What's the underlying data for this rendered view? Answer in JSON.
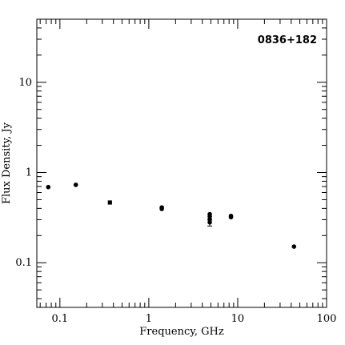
{
  "chart_data": {
    "type": "scatter",
    "title": "",
    "annotation": "0836+182",
    "xlabel": "Frequency, GHz",
    "ylabel": "Flux Density, Jy",
    "x_scale": "log",
    "y_scale": "log",
    "xlim": [
      0.055,
      100
    ],
    "ylim": [
      0.032,
      50
    ],
    "grid": false,
    "legend": "none",
    "x_ticks": [
      {
        "value": 0.1,
        "label": "0.1"
      },
      {
        "value": 1,
        "label": "1"
      },
      {
        "value": 10,
        "label": "10"
      },
      {
        "value": 100,
        "label": "100"
      }
    ],
    "y_ticks": [
      {
        "value": 0.1,
        "label": "0.1"
      },
      {
        "value": 1,
        "label": "1"
      },
      {
        "value": 10,
        "label": "10"
      }
    ],
    "points": [
      {
        "x": 0.074,
        "y": 0.69,
        "marker": "circle"
      },
      {
        "x": 0.151,
        "y": 0.73,
        "marker": "circle"
      },
      {
        "x": 0.365,
        "y": 0.465,
        "marker": "square"
      },
      {
        "x": 1.4,
        "y": 0.41,
        "marker": "circle"
      },
      {
        "x": 1.4,
        "y": 0.395,
        "marker": "circle"
      },
      {
        "x": 4.85,
        "y": 0.345,
        "marker": "circle"
      },
      {
        "x": 4.85,
        "y": 0.325,
        "marker": "circle"
      },
      {
        "x": 4.85,
        "y": 0.3,
        "marker": "circle"
      },
      {
        "x": 4.85,
        "y": 0.28,
        "marker": "circle",
        "error": [
          0.255,
          0.305
        ]
      },
      {
        "x": 8.4,
        "y": 0.33,
        "marker": "circle"
      },
      {
        "x": 8.4,
        "y": 0.32,
        "marker": "circle"
      },
      {
        "x": 43,
        "y": 0.151,
        "marker": "circle"
      }
    ]
  }
}
